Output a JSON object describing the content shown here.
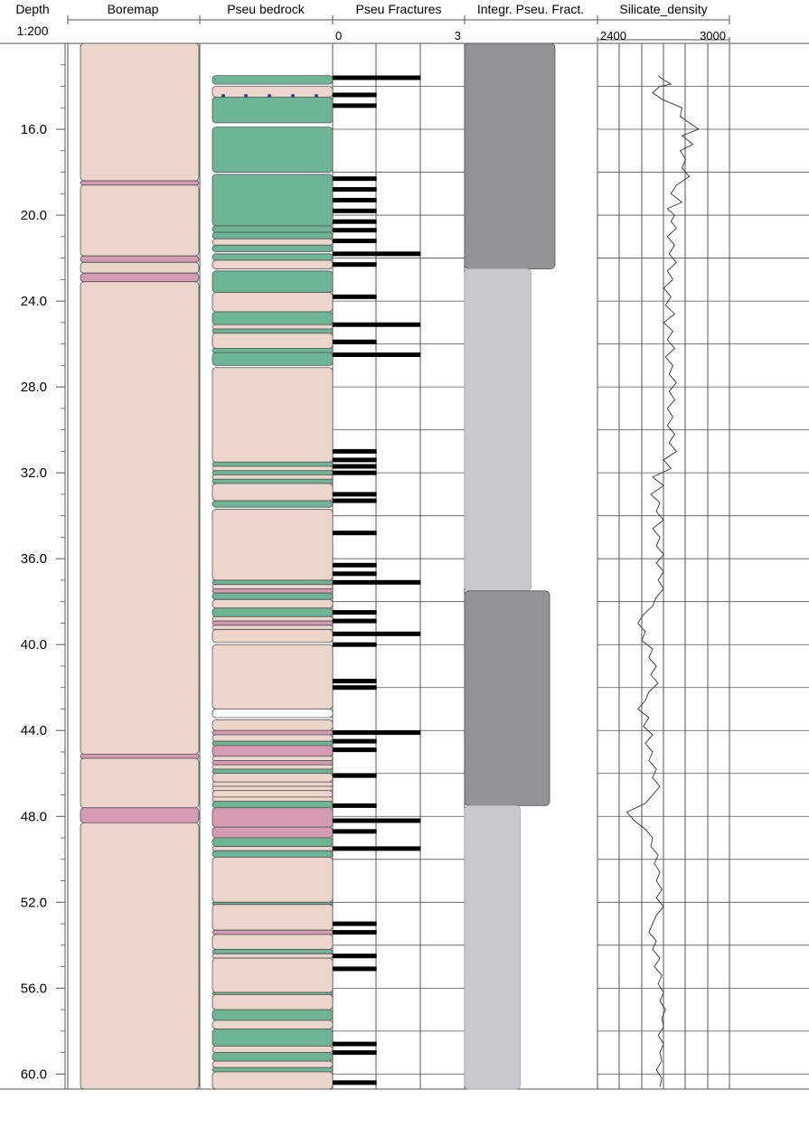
{
  "headers": {
    "depth": "Depth",
    "scale": "1:200",
    "boremap": "Boremap",
    "bedrock": "Pseu bedrock",
    "fractures": "Pseu Fractures",
    "integrity": "Integr. Pseu. Fract.",
    "density": "Silicate_density"
  },
  "fracture_scale": {
    "min_label": "0",
    "max_label": "3"
  },
  "density_scale": {
    "min_label": "2400",
    "max_label": "3000"
  },
  "colors": {
    "rock_pink": "#ecd5cb",
    "rock_magenta": "#d59ab4",
    "rock_green": "#6db595",
    "integr_dark": "#929397",
    "integr_light": "#c9c9cd"
  },
  "chart_data": {
    "type": "well-log",
    "depth_axis": {
      "label": "Depth",
      "scale": "1:200",
      "range": [
        12.0,
        60.7
      ],
      "tick_labels": [
        "16.0",
        "20.0",
        "24.0",
        "28.0",
        "32.0",
        "36.0",
        "40.0",
        "44.0",
        "48.0",
        "52.0",
        "56.0",
        "60.0"
      ]
    },
    "boremap": [
      {
        "top": 12.0,
        "bottom": 18.4,
        "rock": "pink"
      },
      {
        "top": 18.4,
        "bottom": 18.6,
        "rock": "magenta"
      },
      {
        "top": 18.6,
        "bottom": 21.9,
        "rock": "pink"
      },
      {
        "top": 21.9,
        "bottom": 22.2,
        "rock": "magenta"
      },
      {
        "top": 22.2,
        "bottom": 22.7,
        "rock": "pink"
      },
      {
        "top": 22.7,
        "bottom": 23.1,
        "rock": "magenta"
      },
      {
        "top": 23.1,
        "bottom": 45.1,
        "rock": "pink"
      },
      {
        "top": 45.1,
        "bottom": 45.3,
        "rock": "magenta"
      },
      {
        "top": 45.3,
        "bottom": 47.6,
        "rock": "pink"
      },
      {
        "top": 47.6,
        "bottom": 48.3,
        "rock": "magenta"
      },
      {
        "top": 48.3,
        "bottom": 60.7,
        "rock": "pink"
      }
    ],
    "bedrock": [
      {
        "top": 13.5,
        "bottom": 13.9,
        "rock": "green"
      },
      {
        "top": 14.0,
        "bottom": 14.5,
        "rock": "pink"
      },
      {
        "top": 14.5,
        "bottom": 15.7,
        "rock": "green"
      },
      {
        "top": 15.9,
        "bottom": 18.0,
        "rock": "green"
      },
      {
        "top": 18.1,
        "bottom": 20.5,
        "rock": "green"
      },
      {
        "top": 20.5,
        "bottom": 20.8,
        "rock": "green"
      },
      {
        "top": 20.8,
        "bottom": 21.1,
        "rock": "green"
      },
      {
        "top": 21.1,
        "bottom": 21.4,
        "rock": "pink"
      },
      {
        "top": 21.4,
        "bottom": 21.7,
        "rock": "green"
      },
      {
        "top": 21.8,
        "bottom": 22.1,
        "rock": "green"
      },
      {
        "top": 22.1,
        "bottom": 22.5,
        "rock": "pink"
      },
      {
        "top": 22.6,
        "bottom": 23.6,
        "rock": "green"
      },
      {
        "top": 23.6,
        "bottom": 24.5,
        "rock": "pink"
      },
      {
        "top": 24.5,
        "bottom": 25.1,
        "rock": "green"
      },
      {
        "top": 25.1,
        "bottom": 25.3,
        "rock": "pink"
      },
      {
        "top": 25.3,
        "bottom": 25.5,
        "rock": "green"
      },
      {
        "top": 25.5,
        "bottom": 26.2,
        "rock": "pink"
      },
      {
        "top": 26.2,
        "bottom": 26.4,
        "rock": "green"
      },
      {
        "top": 26.4,
        "bottom": 27.0,
        "rock": "green"
      },
      {
        "top": 27.1,
        "bottom": 31.5,
        "rock": "pink"
      },
      {
        "top": 31.5,
        "bottom": 31.7,
        "rock": "green"
      },
      {
        "top": 31.7,
        "bottom": 31.9,
        "rock": "pink"
      },
      {
        "top": 31.9,
        "bottom": 32.1,
        "rock": "green"
      },
      {
        "top": 32.1,
        "bottom": 32.3,
        "rock": "pink"
      },
      {
        "top": 32.3,
        "bottom": 32.5,
        "rock": "green"
      },
      {
        "top": 32.5,
        "bottom": 33.3,
        "rock": "pink"
      },
      {
        "top": 33.3,
        "bottom": 33.6,
        "rock": "green"
      },
      {
        "top": 33.7,
        "bottom": 37.0,
        "rock": "pink"
      },
      {
        "top": 37.0,
        "bottom": 37.2,
        "rock": "green"
      },
      {
        "top": 37.2,
        "bottom": 37.4,
        "rock": "pink"
      },
      {
        "top": 37.4,
        "bottom": 37.6,
        "rock": "magenta"
      },
      {
        "top": 37.6,
        "bottom": 37.9,
        "rock": "green"
      },
      {
        "top": 37.9,
        "bottom": 38.3,
        "rock": "pink"
      },
      {
        "top": 38.3,
        "bottom": 38.7,
        "rock": "green"
      },
      {
        "top": 38.7,
        "bottom": 38.9,
        "rock": "pink"
      },
      {
        "top": 38.9,
        "bottom": 39.1,
        "rock": "magenta"
      },
      {
        "top": 39.1,
        "bottom": 39.3,
        "rock": "pink"
      },
      {
        "top": 39.3,
        "bottom": 39.9,
        "rock": "pink"
      },
      {
        "top": 40.0,
        "bottom": 43.0,
        "rock": "pink"
      },
      {
        "top": 43.0,
        "bottom": 43.4,
        "rock": "white"
      },
      {
        "top": 43.5,
        "bottom": 44.0,
        "rock": "pink"
      },
      {
        "top": 44.0,
        "bottom": 44.2,
        "rock": "magenta"
      },
      {
        "top": 44.2,
        "bottom": 44.5,
        "rock": "pink"
      },
      {
        "top": 44.5,
        "bottom": 44.7,
        "rock": "green"
      },
      {
        "top": 44.7,
        "bottom": 45.2,
        "rock": "magenta"
      },
      {
        "top": 45.2,
        "bottom": 45.4,
        "rock": "pink"
      },
      {
        "top": 45.4,
        "bottom": 45.6,
        "rock": "magenta"
      },
      {
        "top": 45.6,
        "bottom": 45.8,
        "rock": "pink"
      },
      {
        "top": 45.8,
        "bottom": 46.0,
        "rock": "green"
      },
      {
        "top": 46.0,
        "bottom": 46.4,
        "rock": "pink"
      },
      {
        "top": 46.4,
        "bottom": 46.6,
        "rock": "pink"
      },
      {
        "top": 46.6,
        "bottom": 46.8,
        "rock": "pink"
      },
      {
        "top": 46.8,
        "bottom": 47.1,
        "rock": "pink"
      },
      {
        "top": 47.1,
        "bottom": 47.3,
        "rock": "pink"
      },
      {
        "top": 47.3,
        "bottom": 47.6,
        "rock": "green"
      },
      {
        "top": 47.6,
        "bottom": 48.5,
        "rock": "magenta"
      },
      {
        "top": 48.5,
        "bottom": 49.0,
        "rock": "magenta"
      },
      {
        "top": 49.0,
        "bottom": 49.4,
        "rock": "green"
      },
      {
        "top": 49.4,
        "bottom": 49.6,
        "rock": "pink"
      },
      {
        "top": 49.6,
        "bottom": 49.9,
        "rock": "green"
      },
      {
        "top": 49.9,
        "bottom": 52.0,
        "rock": "pink"
      },
      {
        "top": 52.0,
        "bottom": 52.1,
        "rock": "green"
      },
      {
        "top": 52.1,
        "bottom": 53.3,
        "rock": "pink"
      },
      {
        "top": 53.3,
        "bottom": 53.5,
        "rock": "magenta"
      },
      {
        "top": 53.5,
        "bottom": 54.2,
        "rock": "pink"
      },
      {
        "top": 54.2,
        "bottom": 54.4,
        "rock": "green"
      },
      {
        "top": 54.4,
        "bottom": 54.6,
        "rock": "pink"
      },
      {
        "top": 54.6,
        "bottom": 56.2,
        "rock": "pink"
      },
      {
        "top": 56.2,
        "bottom": 56.3,
        "rock": "green"
      },
      {
        "top": 56.3,
        "bottom": 57.0,
        "rock": "pink"
      },
      {
        "top": 57.0,
        "bottom": 57.5,
        "rock": "green"
      },
      {
        "top": 57.5,
        "bottom": 57.9,
        "rock": "pink"
      },
      {
        "top": 57.9,
        "bottom": 58.7,
        "rock": "green"
      },
      {
        "top": 58.7,
        "bottom": 59.0,
        "rock": "pink"
      },
      {
        "top": 59.0,
        "bottom": 59.4,
        "rock": "green"
      },
      {
        "top": 59.4,
        "bottom": 59.7,
        "rock": "pink"
      },
      {
        "top": 59.7,
        "bottom": 59.9,
        "rock": "green"
      },
      {
        "top": 59.9,
        "bottom": 60.7,
        "rock": "pink"
      }
    ],
    "fractures": [
      {
        "depth": 13.6,
        "count": 2
      },
      {
        "depth": 14.4,
        "count": 1
      },
      {
        "depth": 14.9,
        "count": 1
      },
      {
        "depth": 18.3,
        "count": 1
      },
      {
        "depth": 18.8,
        "count": 1
      },
      {
        "depth": 19.3,
        "count": 1
      },
      {
        "depth": 19.8,
        "count": 1
      },
      {
        "depth": 20.3,
        "count": 1
      },
      {
        "depth": 20.7,
        "count": 1
      },
      {
        "depth": 21.2,
        "count": 1
      },
      {
        "depth": 21.8,
        "count": 2
      },
      {
        "depth": 22.3,
        "count": 1
      },
      {
        "depth": 23.8,
        "count": 1
      },
      {
        "depth": 25.1,
        "count": 2
      },
      {
        "depth": 25.9,
        "count": 1
      },
      {
        "depth": 26.5,
        "count": 2
      },
      {
        "depth": 31.0,
        "count": 1
      },
      {
        "depth": 31.4,
        "count": 1
      },
      {
        "depth": 31.7,
        "count": 1
      },
      {
        "depth": 32.0,
        "count": 1
      },
      {
        "depth": 33.0,
        "count": 1
      },
      {
        "depth": 33.3,
        "count": 1
      },
      {
        "depth": 34.8,
        "count": 1
      },
      {
        "depth": 36.3,
        "count": 1
      },
      {
        "depth": 36.7,
        "count": 1
      },
      {
        "depth": 37.1,
        "count": 2
      },
      {
        "depth": 38.5,
        "count": 1
      },
      {
        "depth": 38.9,
        "count": 1
      },
      {
        "depth": 39.5,
        "count": 2
      },
      {
        "depth": 40.0,
        "count": 1
      },
      {
        "depth": 41.7,
        "count": 1
      },
      {
        "depth": 42.0,
        "count": 1
      },
      {
        "depth": 44.1,
        "count": 2
      },
      {
        "depth": 44.5,
        "count": 1
      },
      {
        "depth": 44.9,
        "count": 1
      },
      {
        "depth": 46.1,
        "count": 1
      },
      {
        "depth": 47.5,
        "count": 1
      },
      {
        "depth": 48.2,
        "count": 2
      },
      {
        "depth": 48.7,
        "count": 1
      },
      {
        "depth": 49.5,
        "count": 2
      },
      {
        "depth": 53.0,
        "count": 1
      },
      {
        "depth": 53.4,
        "count": 1
      },
      {
        "depth": 54.5,
        "count": 1
      },
      {
        "depth": 55.1,
        "count": 1
      },
      {
        "depth": 58.6,
        "count": 1
      },
      {
        "depth": 59.0,
        "count": 1
      },
      {
        "depth": 60.4,
        "count": 1
      }
    ],
    "integrity": [
      {
        "top": 12.0,
        "bottom": 22.5,
        "level": 0.68,
        "shade": "dark"
      },
      {
        "top": 22.5,
        "bottom": 37.5,
        "level": 0.5,
        "shade": "light"
      },
      {
        "top": 37.5,
        "bottom": 47.5,
        "level": 0.64,
        "shade": "dark"
      },
      {
        "top": 47.5,
        "bottom": 60.7,
        "level": 0.42,
        "shade": "light"
      }
    ],
    "silicate_density": {
      "label": "Silicate_density",
      "xlim": [
        2400,
        3000
      ],
      "points": [
        [
          13.5,
          2730
        ],
        [
          13.7,
          2760
        ],
        [
          13.9,
          2800
        ],
        [
          14.0,
          2740
        ],
        [
          14.3,
          2700
        ],
        [
          14.6,
          2750
        ],
        [
          15.0,
          2860
        ],
        [
          15.4,
          2850
        ],
        [
          15.7,
          2900
        ],
        [
          16.0,
          2950
        ],
        [
          16.3,
          2860
        ],
        [
          16.7,
          2920
        ],
        [
          17.0,
          2850
        ],
        [
          17.4,
          2880
        ],
        [
          17.8,
          2860
        ],
        [
          18.2,
          2900
        ],
        [
          18.6,
          2830
        ],
        [
          19.0,
          2800
        ],
        [
          19.4,
          2860
        ],
        [
          19.7,
          2780
        ],
        [
          20.0,
          2820
        ],
        [
          20.3,
          2800
        ],
        [
          20.6,
          2830
        ],
        [
          21.0,
          2780
        ],
        [
          21.4,
          2820
        ],
        [
          21.8,
          2790
        ],
        [
          22.2,
          2830
        ],
        [
          22.6,
          2780
        ],
        [
          23.0,
          2810
        ],
        [
          23.4,
          2760
        ],
        [
          23.8,
          2800
        ],
        [
          24.2,
          2770
        ],
        [
          24.6,
          2820
        ],
        [
          25.0,
          2760
        ],
        [
          25.4,
          2810
        ],
        [
          25.8,
          2780
        ],
        [
          26.2,
          2820
        ],
        [
          26.6,
          2770
        ],
        [
          27.0,
          2810
        ],
        [
          27.4,
          2790
        ],
        [
          27.8,
          2830
        ],
        [
          28.2,
          2790
        ],
        [
          28.6,
          2820
        ],
        [
          29.0,
          2780
        ],
        [
          29.4,
          2810
        ],
        [
          29.8,
          2780
        ],
        [
          30.2,
          2820
        ],
        [
          30.6,
          2790
        ],
        [
          31.0,
          2830
        ],
        [
          31.4,
          2760
        ],
        [
          31.8,
          2800
        ],
        [
          32.2,
          2700
        ],
        [
          32.6,
          2760
        ],
        [
          33.0,
          2690
        ],
        [
          33.4,
          2740
        ],
        [
          33.8,
          2720
        ],
        [
          34.2,
          2760
        ],
        [
          34.6,
          2700
        ],
        [
          35.0,
          2740
        ],
        [
          35.4,
          2720
        ],
        [
          35.8,
          2760
        ],
        [
          36.2,
          2720
        ],
        [
          36.6,
          2760
        ],
        [
          37.0,
          2730
        ],
        [
          37.4,
          2760
        ],
        [
          37.8,
          2720
        ],
        [
          38.2,
          2700
        ],
        [
          38.6,
          2650
        ],
        [
          39.0,
          2620
        ],
        [
          39.4,
          2660
        ],
        [
          39.8,
          2640
        ],
        [
          40.2,
          2700
        ],
        [
          40.6,
          2680
        ],
        [
          41.0,
          2720
        ],
        [
          41.4,
          2690
        ],
        [
          41.8,
          2730
        ],
        [
          42.2,
          2680
        ],
        [
          42.6,
          2660
        ],
        [
          43.0,
          2620
        ],
        [
          43.4,
          2680
        ],
        [
          43.8,
          2650
        ],
        [
          44.2,
          2700
        ],
        [
          44.6,
          2660
        ],
        [
          45.0,
          2700
        ],
        [
          45.4,
          2680
        ],
        [
          45.8,
          2720
        ],
        [
          46.2,
          2700
        ],
        [
          46.6,
          2740
        ],
        [
          47.0,
          2700
        ],
        [
          47.4,
          2660
        ],
        [
          47.8,
          2560
        ],
        [
          48.2,
          2600
        ],
        [
          48.6,
          2660
        ],
        [
          49.0,
          2700
        ],
        [
          49.4,
          2690
        ],
        [
          49.8,
          2730
        ],
        [
          50.2,
          2710
        ],
        [
          50.6,
          2740
        ],
        [
          51.0,
          2720
        ],
        [
          51.4,
          2750
        ],
        [
          51.8,
          2720
        ],
        [
          52.2,
          2760
        ],
        [
          52.6,
          2720
        ],
        [
          53.0,
          2700
        ],
        [
          53.4,
          2680
        ],
        [
          53.8,
          2720
        ],
        [
          54.2,
          2700
        ],
        [
          54.6,
          2740
        ],
        [
          55.0,
          2710
        ],
        [
          55.4,
          2750
        ],
        [
          55.8,
          2730
        ],
        [
          56.2,
          2760
        ],
        [
          56.6,
          2740
        ],
        [
          57.0,
          2770
        ],
        [
          57.4,
          2750
        ],
        [
          57.8,
          2760
        ],
        [
          58.2,
          2730
        ],
        [
          58.6,
          2760
        ],
        [
          59.0,
          2740
        ],
        [
          59.4,
          2750
        ],
        [
          59.8,
          2720
        ],
        [
          60.2,
          2750
        ],
        [
          60.6,
          2740
        ]
      ]
    }
  }
}
